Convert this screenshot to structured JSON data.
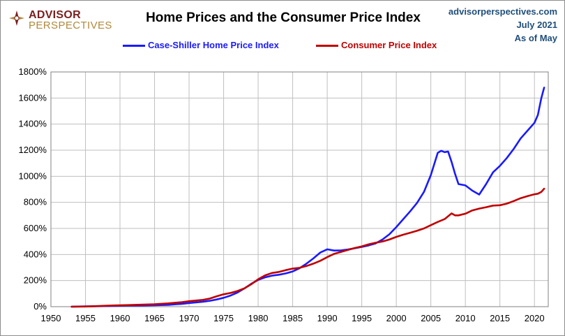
{
  "logo": {
    "line1": "ADVISOR",
    "line2": "PERSPECTIVES"
  },
  "source": {
    "site": "advisorperspectives.com",
    "date": "July 2021",
    "asof": "As of May"
  },
  "colors": {
    "home": "#1a1aff",
    "cpi": "#c00000",
    "grid": "#bfbfbf",
    "logo_maroon": "#7a1f1f",
    "logo_gold": "#b08a3c"
  },
  "chart_data": {
    "type": "line",
    "title": "Home Prices and the Consumer Price Index",
    "xlabel": "",
    "ylabel": "",
    "xlim": [
      1950,
      2022
    ],
    "ylim": [
      0,
      1800
    ],
    "x_ticks": [
      1950,
      1955,
      1960,
      1965,
      1970,
      1975,
      1980,
      1985,
      1990,
      1995,
      2000,
      2005,
      2010,
      2015,
      2020
    ],
    "x_tick_labels": [
      "1950",
      "1955",
      "1960",
      "1965",
      "1970",
      "1975",
      "1980",
      "1985",
      "1990",
      "1995",
      "2000",
      "2005",
      "2010",
      "2015",
      "2020"
    ],
    "y_ticks": [
      0,
      200,
      400,
      600,
      800,
      1000,
      1200,
      1400,
      1600,
      1800
    ],
    "y_tick_labels": [
      "0%",
      "200%",
      "400%",
      "600%",
      "800%",
      "1000%",
      "1200%",
      "1400%",
      "1600%",
      "1800%"
    ],
    "grid": true,
    "legend_position": "top",
    "series": [
      {
        "name": "Case-Shiller Home Price Index",
        "color": "#1a1aff",
        "points": [
          [
            1953,
            0
          ],
          [
            1955,
            2
          ],
          [
            1957,
            4
          ],
          [
            1959,
            6
          ],
          [
            1961,
            8
          ],
          [
            1963,
            9
          ],
          [
            1965,
            11
          ],
          [
            1967,
            14
          ],
          [
            1969,
            22
          ],
          [
            1970,
            28
          ],
          [
            1972,
            38
          ],
          [
            1973,
            45
          ],
          [
            1974,
            55
          ],
          [
            1975,
            68
          ],
          [
            1976,
            85
          ],
          [
            1977,
            108
          ],
          [
            1978,
            140
          ],
          [
            1979,
            175
          ],
          [
            1980,
            205
          ],
          [
            1981,
            225
          ],
          [
            1982,
            238
          ],
          [
            1983,
            245
          ],
          [
            1984,
            255
          ],
          [
            1985,
            270
          ],
          [
            1986,
            295
          ],
          [
            1987,
            330
          ],
          [
            1988,
            370
          ],
          [
            1989,
            415
          ],
          [
            1990,
            440
          ],
          [
            1991,
            430
          ],
          [
            1992,
            432
          ],
          [
            1993,
            438
          ],
          [
            1994,
            448
          ],
          [
            1995,
            458
          ],
          [
            1996,
            470
          ],
          [
            1997,
            485
          ],
          [
            1998,
            515
          ],
          [
            1999,
            555
          ],
          [
            2000,
            610
          ],
          [
            2001,
            670
          ],
          [
            2002,
            730
          ],
          [
            2003,
            795
          ],
          [
            2004,
            880
          ],
          [
            2005,
            1010
          ],
          [
            2006,
            1180
          ],
          [
            2006.5,
            1195
          ],
          [
            2007,
            1185
          ],
          [
            2007.5,
            1190
          ],
          [
            2008,
            1110
          ],
          [
            2008.5,
            1020
          ],
          [
            2009,
            940
          ],
          [
            2010,
            930
          ],
          [
            2011,
            890
          ],
          [
            2012,
            860
          ],
          [
            2013,
            940
          ],
          [
            2014,
            1030
          ],
          [
            2015,
            1080
          ],
          [
            2016,
            1140
          ],
          [
            2017,
            1210
          ],
          [
            2018,
            1290
          ],
          [
            2019,
            1350
          ],
          [
            2020,
            1410
          ],
          [
            2020.5,
            1470
          ],
          [
            2021,
            1600
          ],
          [
            2021.4,
            1680
          ]
        ]
      },
      {
        "name": "Consumer Price Index",
        "color": "#c00000",
        "points": [
          [
            1953,
            0
          ],
          [
            1955,
            1
          ],
          [
            1957,
            5
          ],
          [
            1959,
            9
          ],
          [
            1961,
            12
          ],
          [
            1963,
            15
          ],
          [
            1965,
            18
          ],
          [
            1967,
            25
          ],
          [
            1969,
            35
          ],
          [
            1970,
            42
          ],
          [
            1972,
            52
          ],
          [
            1973,
            62
          ],
          [
            1974,
            80
          ],
          [
            1975,
            95
          ],
          [
            1976,
            105
          ],
          [
            1977,
            120
          ],
          [
            1978,
            140
          ],
          [
            1979,
            172
          ],
          [
            1980,
            210
          ],
          [
            1981,
            240
          ],
          [
            1982,
            258
          ],
          [
            1983,
            266
          ],
          [
            1984,
            280
          ],
          [
            1985,
            292
          ],
          [
            1986,
            298
          ],
          [
            1987,
            312
          ],
          [
            1988,
            330
          ],
          [
            1989,
            352
          ],
          [
            1990,
            380
          ],
          [
            1991,
            405
          ],
          [
            1992,
            420
          ],
          [
            1993,
            435
          ],
          [
            1994,
            450
          ],
          [
            1995,
            462
          ],
          [
            1996,
            478
          ],
          [
            1997,
            490
          ],
          [
            1998,
            500
          ],
          [
            1999,
            515
          ],
          [
            2000,
            535
          ],
          [
            2001,
            552
          ],
          [
            2002,
            566
          ],
          [
            2003,
            582
          ],
          [
            2004,
            600
          ],
          [
            2005,
            625
          ],
          [
            2006,
            650
          ],
          [
            2007,
            672
          ],
          [
            2008,
            715
          ],
          [
            2008.5,
            700
          ],
          [
            2009,
            700
          ],
          [
            2010,
            713
          ],
          [
            2011,
            738
          ],
          [
            2012,
            752
          ],
          [
            2013,
            763
          ],
          [
            2014,
            775
          ],
          [
            2015,
            778
          ],
          [
            2016,
            790
          ],
          [
            2017,
            810
          ],
          [
            2018,
            832
          ],
          [
            2019,
            848
          ],
          [
            2020,
            862
          ],
          [
            2020.5,
            866
          ],
          [
            2021,
            880
          ],
          [
            2021.4,
            905
          ]
        ]
      }
    ]
  }
}
